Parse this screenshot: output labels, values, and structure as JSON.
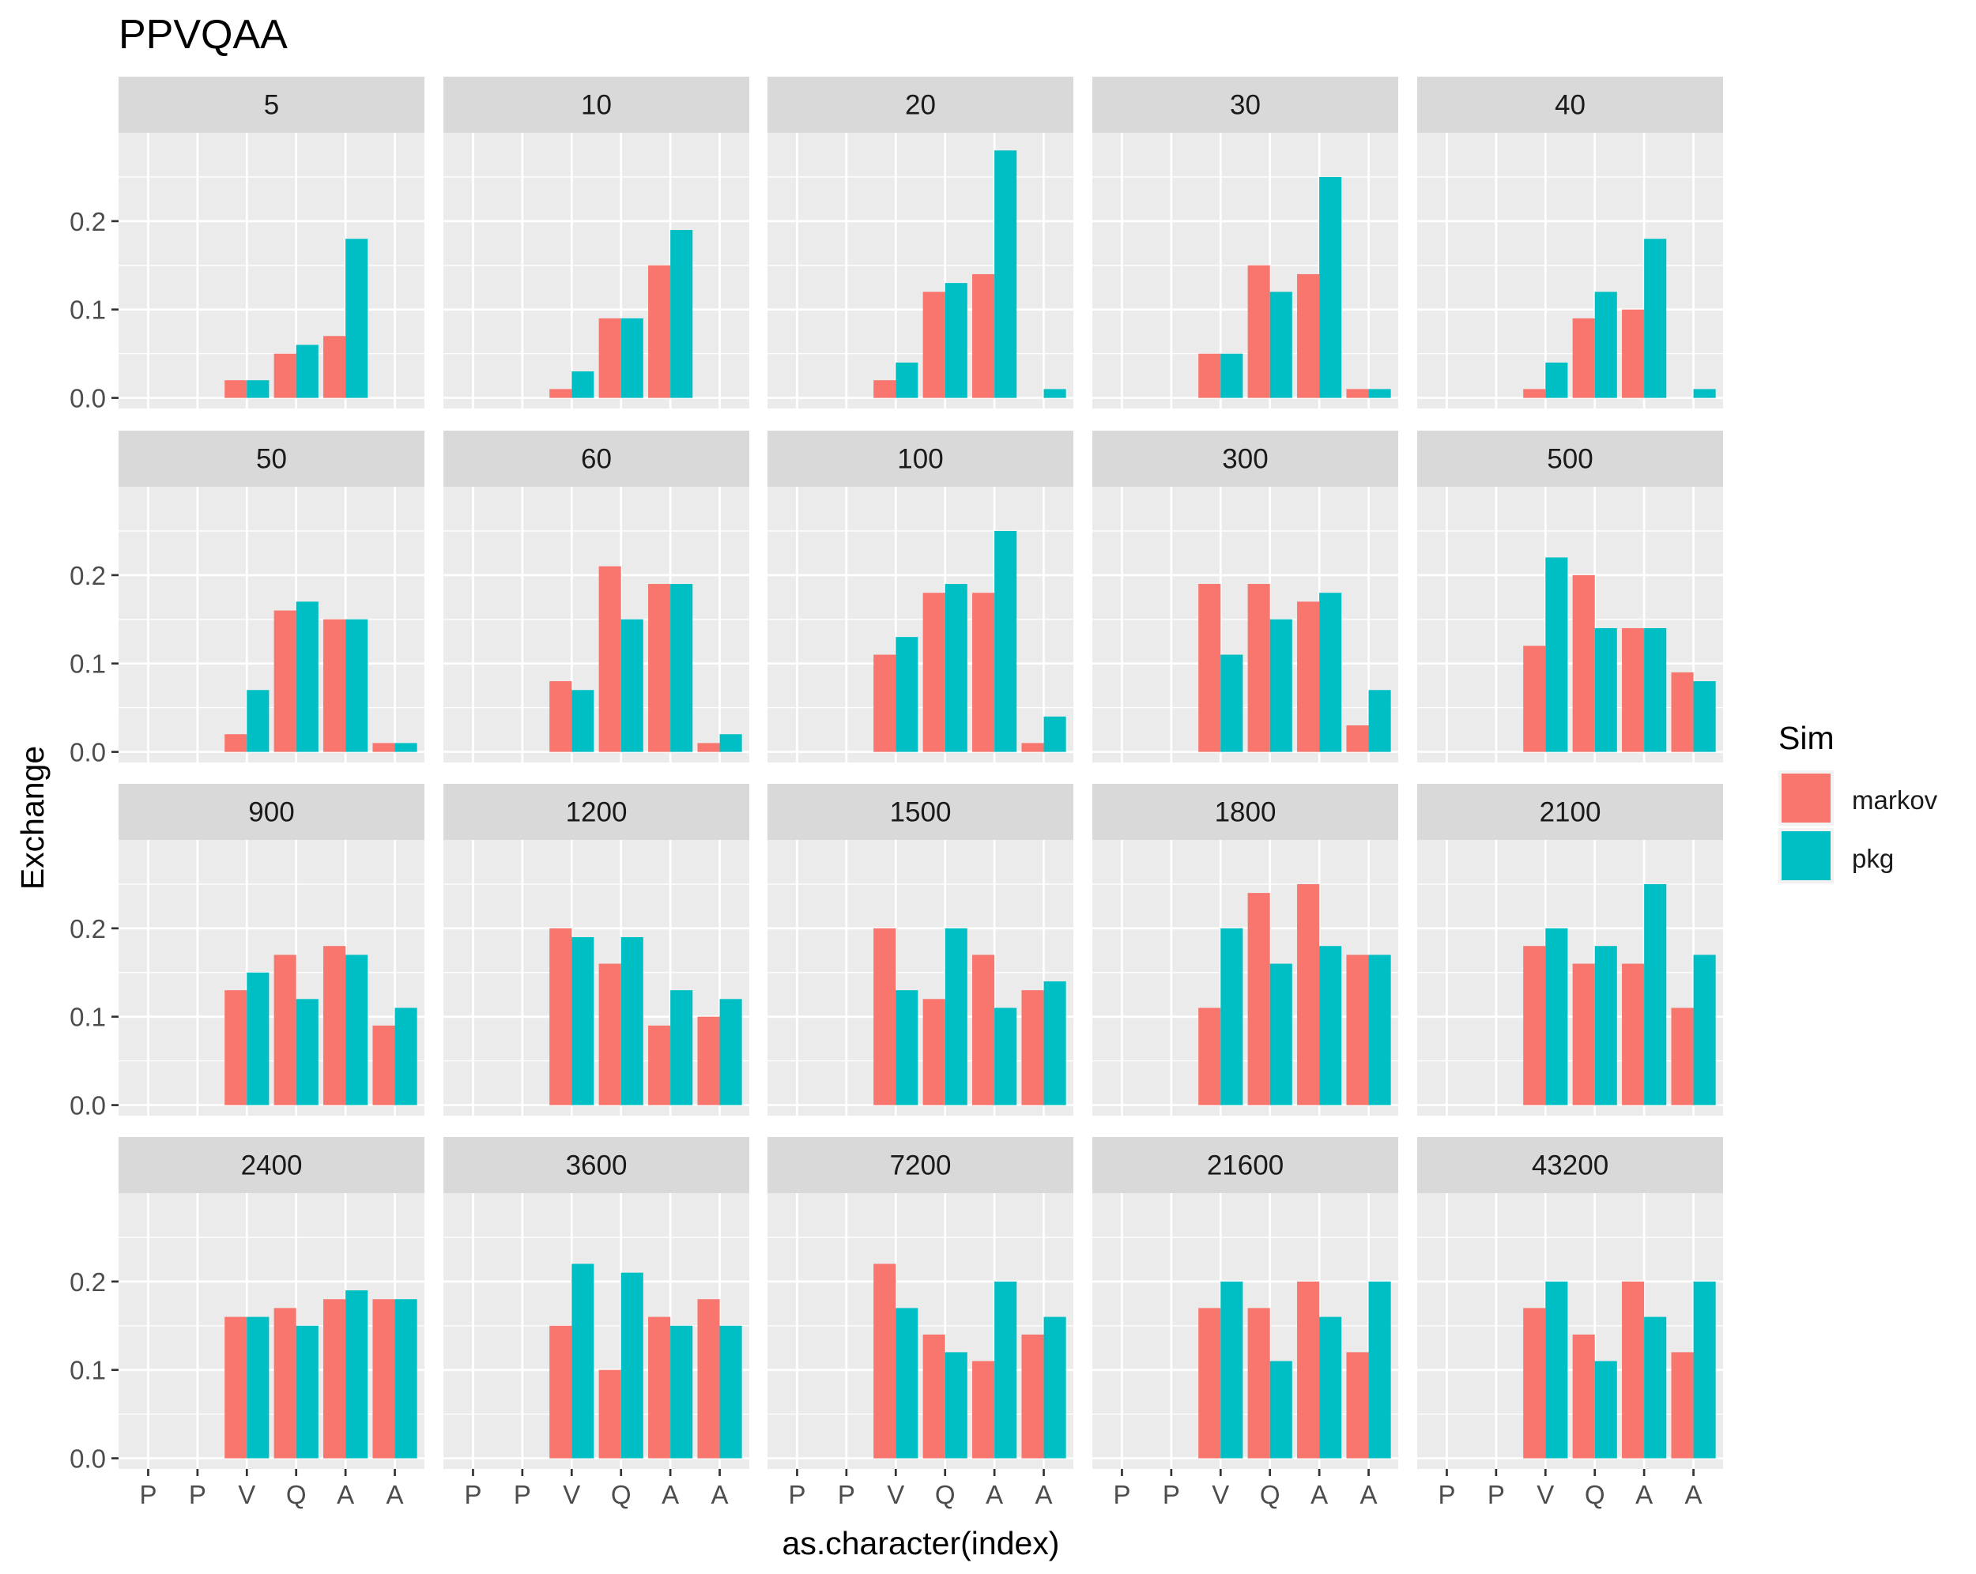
{
  "chart_data": {
    "type": "bar",
    "title": "PPVQAA",
    "xlabel": "as.character(index)",
    "ylabel": "Exchange",
    "categories": [
      "P",
      "P",
      "V",
      "Q",
      "A",
      "A"
    ],
    "ylim": [
      -0.012,
      0.3
    ],
    "yticks": [
      0.0,
      0.1,
      0.2
    ],
    "ytick_labels": [
      "0.0",
      "0.1",
      "0.2"
    ],
    "grid": true,
    "legend": {
      "title": "Sim",
      "position": "right",
      "entries": [
        {
          "name": "markov",
          "color": "#F8766D"
        },
        {
          "name": "pkg",
          "color": "#00BFC4"
        }
      ]
    },
    "panels": [
      {
        "label": "5",
        "markov": [
          null,
          null,
          0.02,
          0.05,
          0.07,
          null
        ],
        "pkg": [
          null,
          null,
          0.02,
          0.06,
          0.18,
          null
        ]
      },
      {
        "label": "10",
        "markov": [
          null,
          null,
          0.01,
          0.09,
          0.15,
          null
        ],
        "pkg": [
          null,
          null,
          0.03,
          0.09,
          0.19,
          null
        ]
      },
      {
        "label": "20",
        "markov": [
          null,
          null,
          0.02,
          0.12,
          0.14,
          null
        ],
        "pkg": [
          null,
          null,
          0.04,
          0.13,
          0.28,
          0.01
        ]
      },
      {
        "label": "30",
        "markov": [
          null,
          null,
          0.05,
          0.15,
          0.14,
          0.01
        ],
        "pkg": [
          null,
          null,
          0.05,
          0.12,
          0.25,
          0.01
        ]
      },
      {
        "label": "40",
        "markov": [
          null,
          null,
          0.01,
          0.09,
          0.1,
          null
        ],
        "pkg": [
          null,
          null,
          0.04,
          0.12,
          0.18,
          0.01
        ]
      },
      {
        "label": "50",
        "markov": [
          null,
          null,
          0.02,
          0.16,
          0.15,
          0.01
        ],
        "pkg": [
          null,
          null,
          0.07,
          0.17,
          0.15,
          0.01
        ]
      },
      {
        "label": "60",
        "markov": [
          null,
          null,
          0.08,
          0.21,
          0.19,
          0.01
        ],
        "pkg": [
          null,
          null,
          0.07,
          0.15,
          0.19,
          0.02
        ]
      },
      {
        "label": "100",
        "markov": [
          null,
          null,
          0.11,
          0.18,
          0.18,
          0.01
        ],
        "pkg": [
          null,
          null,
          0.13,
          0.19,
          0.25,
          0.04
        ]
      },
      {
        "label": "300",
        "markov": [
          null,
          null,
          0.19,
          0.19,
          0.17,
          0.03
        ],
        "pkg": [
          null,
          null,
          0.11,
          0.15,
          0.18,
          0.07
        ]
      },
      {
        "label": "500",
        "markov": [
          null,
          null,
          0.12,
          0.2,
          0.14,
          0.09
        ],
        "pkg": [
          null,
          null,
          0.22,
          0.14,
          0.14,
          0.08
        ]
      },
      {
        "label": "900",
        "markov": [
          null,
          null,
          0.13,
          0.17,
          0.18,
          0.09
        ],
        "pkg": [
          null,
          null,
          0.15,
          0.12,
          0.17,
          0.11
        ]
      },
      {
        "label": "1200",
        "markov": [
          null,
          null,
          0.2,
          0.16,
          0.09,
          0.1
        ],
        "pkg": [
          null,
          null,
          0.19,
          0.19,
          0.13,
          0.12
        ]
      },
      {
        "label": "1500",
        "markov": [
          null,
          null,
          0.2,
          0.12,
          0.17,
          0.13
        ],
        "pkg": [
          null,
          null,
          0.13,
          0.2,
          0.11,
          0.14
        ]
      },
      {
        "label": "1800",
        "markov": [
          null,
          null,
          0.11,
          0.24,
          0.25,
          0.17
        ],
        "pkg": [
          null,
          null,
          0.2,
          0.16,
          0.18,
          0.17
        ]
      },
      {
        "label": "2100",
        "markov": [
          null,
          null,
          0.18,
          0.16,
          0.16,
          0.11
        ],
        "pkg": [
          null,
          null,
          0.2,
          0.18,
          0.25,
          0.17
        ]
      },
      {
        "label": "2400",
        "markov": [
          null,
          null,
          0.16,
          0.17,
          0.18,
          0.18
        ],
        "pkg": [
          null,
          null,
          0.16,
          0.15,
          0.19,
          0.18
        ]
      },
      {
        "label": "3600",
        "markov": [
          null,
          null,
          0.15,
          0.1,
          0.16,
          0.18
        ],
        "pkg": [
          null,
          null,
          0.22,
          0.21,
          0.15,
          0.15
        ]
      },
      {
        "label": "7200",
        "markov": [
          null,
          null,
          0.22,
          0.14,
          0.11,
          0.14
        ],
        "pkg": [
          null,
          null,
          0.17,
          0.12,
          0.2,
          0.16
        ]
      },
      {
        "label": "21600",
        "markov": [
          null,
          null,
          0.17,
          0.17,
          0.2,
          0.12
        ],
        "pkg": [
          null,
          null,
          0.2,
          0.11,
          0.16,
          0.2
        ]
      },
      {
        "label": "43200",
        "markov": [
          null,
          null,
          0.17,
          0.14,
          0.2,
          0.12
        ],
        "pkg": [
          null,
          null,
          0.2,
          0.11,
          0.16,
          0.2
        ]
      }
    ]
  }
}
